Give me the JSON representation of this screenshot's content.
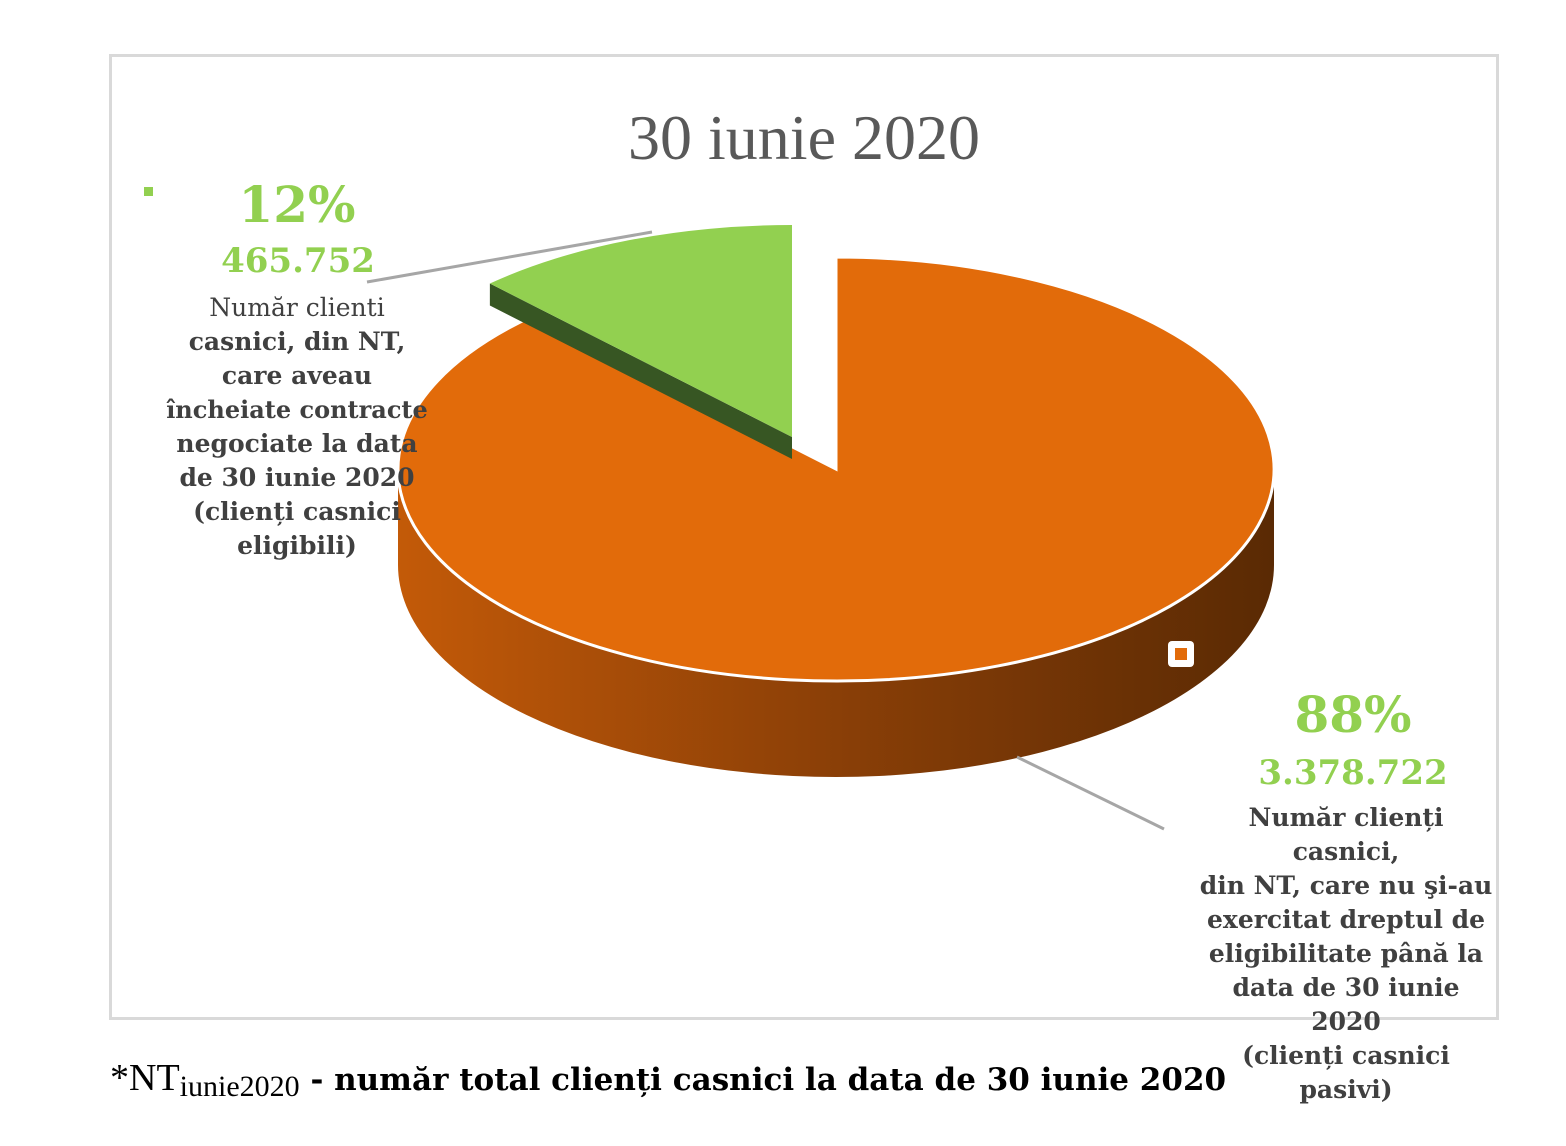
{
  "chart_data": {
    "type": "pie",
    "title": "30 iunie 2020",
    "slices": [
      {
        "percent_label": "12%",
        "value_label": "465.752",
        "value": 465752,
        "percent": 12,
        "desc_lines": [
          "Număr clienti",
          "casnici, din NT,",
          "care aveau",
          "încheiate contracte",
          "negociate la data",
          "de 30 iunie 2020",
          "(clienți casnici",
          "eligibili)"
        ],
        "color": "#92d050"
      },
      {
        "percent_label": "88%",
        "value_label": "3.378.722",
        "value": 3378722,
        "percent": 88,
        "desc_lines": [
          "Număr clienți casnici,",
          "din NT, care nu şi-au",
          "exercitat dreptul de",
          "eligibilitate până la",
          "data de 30 iunie 2020",
          "(clienți casnici pasivi)"
        ],
        "color": "#e26b0a"
      }
    ]
  },
  "footnote": {
    "star_nt": "*NT",
    "subscript": "iunie2020",
    "rest": " - număr total clienți casnici la data de 30 iunie 2020"
  }
}
